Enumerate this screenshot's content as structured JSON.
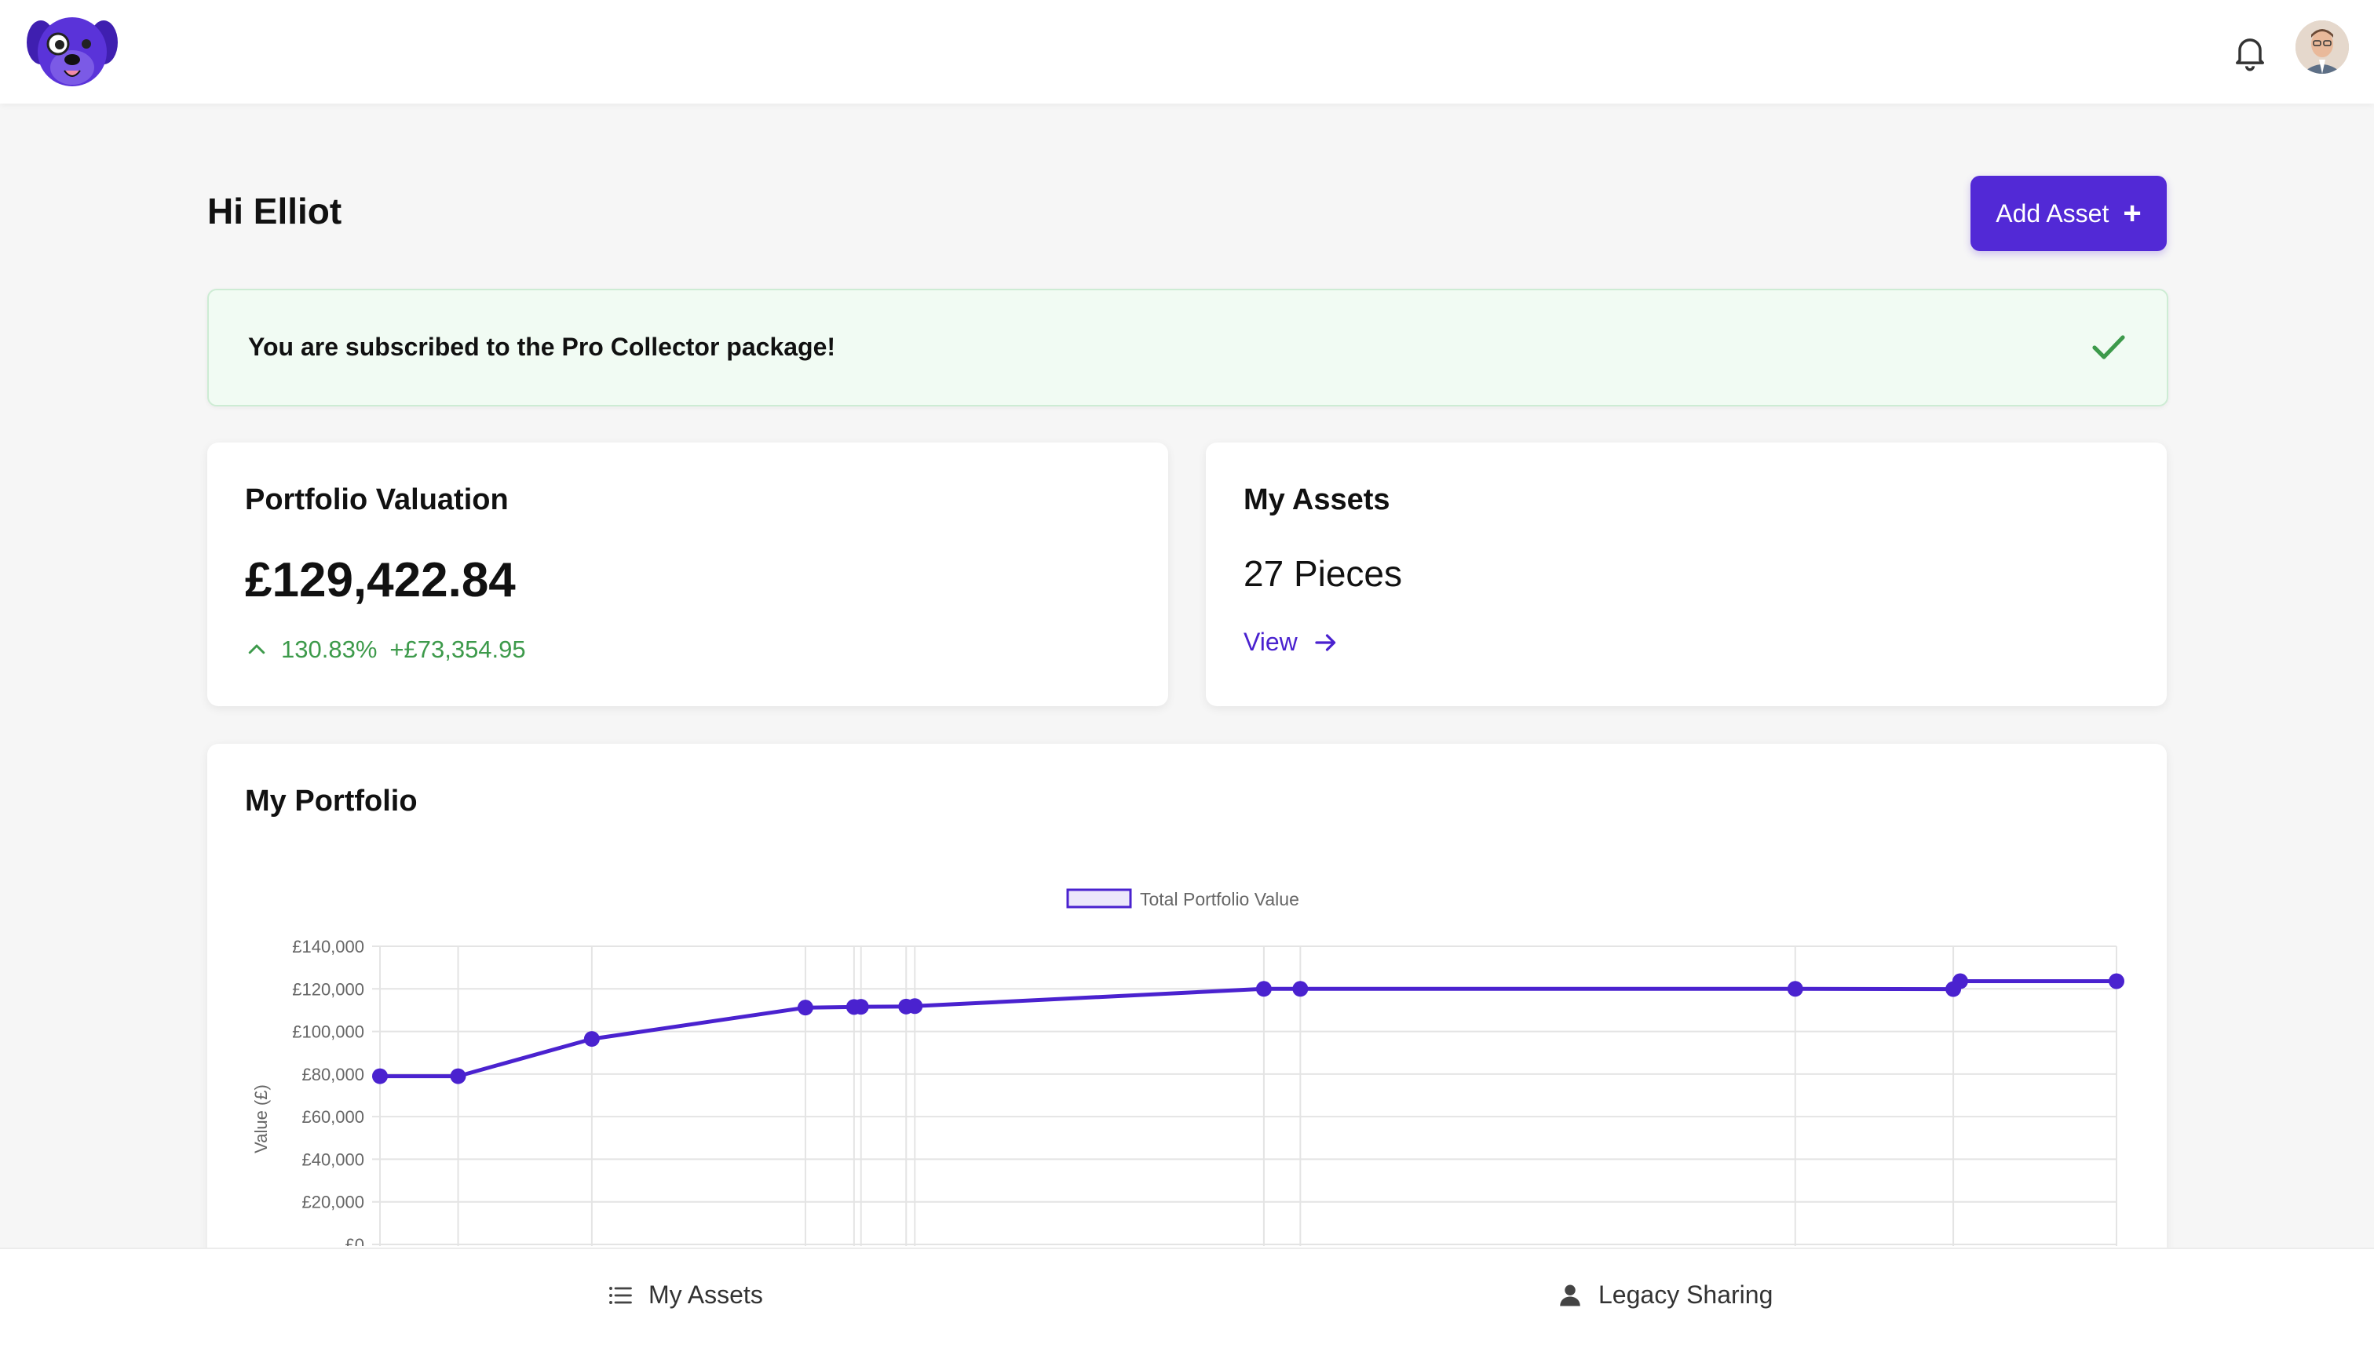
{
  "header": {
    "logo_icon": "dog-mascot-icon",
    "notification_icon": "bell-icon",
    "avatar_icon": "user-avatar"
  },
  "page": {
    "greeting": "Hi Elliot",
    "add_asset_label": "Add Asset",
    "add_asset_icon": "plus-icon"
  },
  "subscription": {
    "message": "You are subscribed to the Pro Collector package!",
    "icon": "check-icon",
    "color": "#3d9a4b"
  },
  "valuation": {
    "title": "Portfolio Valuation",
    "amount": "£129,422.84",
    "change_percent": "130.83%",
    "change_amount": "+£73,354.95",
    "trend_icon": "chevron-up-icon",
    "positive_color": "#3d9a4b"
  },
  "assets": {
    "title": "My Assets",
    "count_label": "27 Pieces",
    "view_label": "View",
    "view_icon": "arrow-right-icon"
  },
  "portfolio": {
    "title": "My Portfolio"
  },
  "chart_data": {
    "type": "line",
    "title": "",
    "ylabel": "Value (£)",
    "xlabel": "",
    "ylim": [
      0,
      140000
    ],
    "y_ticks": [
      "£140,000",
      "£120,000",
      "£100,000",
      "£80,000",
      "£60,000",
      "£40,000",
      "£20,000",
      "£0"
    ],
    "grid": true,
    "legend_position": "top-center",
    "color": "#4a22cf",
    "series": [
      {
        "name": "Total Portfolio Value",
        "points": [
          {
            "x": 0,
            "y": 79000
          },
          {
            "x": 4.5,
            "y": 79000
          },
          {
            "x": 12.2,
            "y": 96500
          },
          {
            "x": 24.5,
            "y": 111200
          },
          {
            "x": 27.3,
            "y": 111500
          },
          {
            "x": 27.7,
            "y": 111600
          },
          {
            "x": 30.3,
            "y": 111700
          },
          {
            "x": 30.8,
            "y": 111900
          },
          {
            "x": 50.9,
            "y": 120000
          },
          {
            "x": 53.0,
            "y": 120000
          },
          {
            "x": 81.5,
            "y": 120000
          },
          {
            "x": 90.6,
            "y": 119900
          },
          {
            "x": 91.0,
            "y": 123600
          },
          {
            "x": 100,
            "y": 123600
          }
        ]
      }
    ]
  },
  "bottom_nav": {
    "items": [
      {
        "label": "My Assets",
        "icon": "list-icon"
      },
      {
        "label": "Legacy Sharing",
        "icon": "person-icon"
      }
    ]
  }
}
